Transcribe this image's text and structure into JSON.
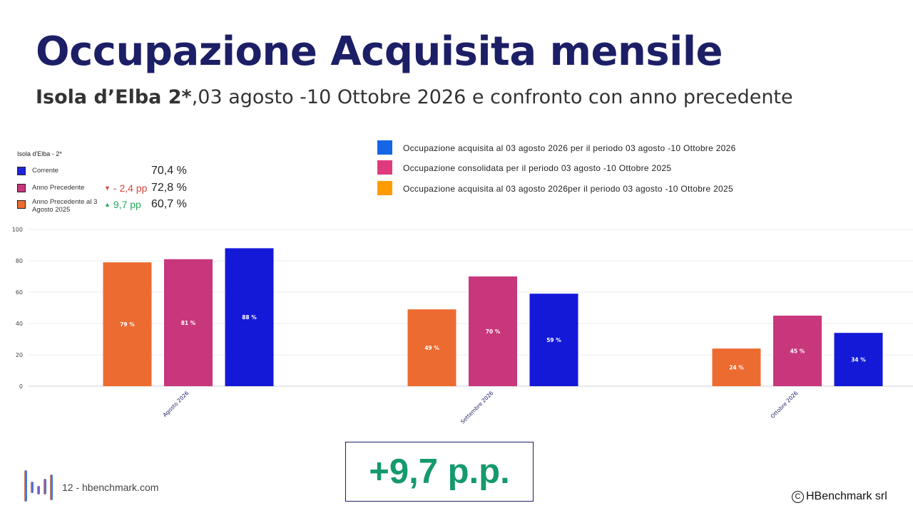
{
  "slide": {
    "title": "Occupazione Acquisita mensile",
    "subtitle_bold": "Isola d’Elba 2*",
    "subtitle_rest": ",03 agosto -10 Ottobre 2026 e confronto con anno precedente",
    "callout": "+9,7 p.p.",
    "footer": "12 - hbenchmark.com",
    "copyright": "HBenchmark srl",
    "copyright_symbol": "C"
  },
  "kpi": {
    "heading": "Isola d'Elba - 2*",
    "rows": [
      {
        "label": "Corrente",
        "delta": "",
        "value": "70,4 %",
        "color": "#1f25d6"
      },
      {
        "label": "Anno Precedente",
        "delta": "- 2,4 pp",
        "delta_dir": "down",
        "delta_color": "#d9453a",
        "value": "72,8 %",
        "color": "#c8367c"
      },
      {
        "label": "Anno Precedente al 3 Agosto 2025",
        "delta": "9,7 pp",
        "delta_dir": "up",
        "delta_color": "#27a85a",
        "value": "60,7 %",
        "color": "#ec6b30"
      }
    ]
  },
  "legend": [
    {
      "label": "Occupazione acquisita al  03 agosto 2026 per il periodo 03 agosto -10 Ottobre 2026",
      "color": "#1565e6"
    },
    {
      "label": "Occupazione consolidata per il periodo 03 agosto -10 Ottobre 2025",
      "color": "#e03a7e"
    },
    {
      "label": "Occupazione acquisita al 03 agosto 2026per il periodo 03 agosto -10 Ottobre 2025",
      "color": "#ff9c00"
    }
  ],
  "chart_data": {
    "type": "bar",
    "categories": [
      "Agosto 2026",
      "Settembre 2026",
      "Ottobre 2026"
    ],
    "series": [
      {
        "values": [
          79,
          49,
          24
        ],
        "labels": [
          "79 %",
          "49 %",
          "24 %"
        ],
        "color": "#ec6b30"
      },
      {
        "values": [
          81,
          70,
          45
        ],
        "labels": [
          "81 %",
          "70 %",
          "45 %"
        ],
        "color": "#c8367c"
      },
      {
        "values": [
          88,
          59,
          34
        ],
        "labels": [
          "88 %",
          "59 %",
          "34 %"
        ],
        "color": "#1419d8"
      }
    ],
    "yticks": [
      "0",
      "20",
      "40",
      "60",
      "80",
      "100"
    ],
    "ylim": [
      0,
      100
    ],
    "grid": true
  }
}
